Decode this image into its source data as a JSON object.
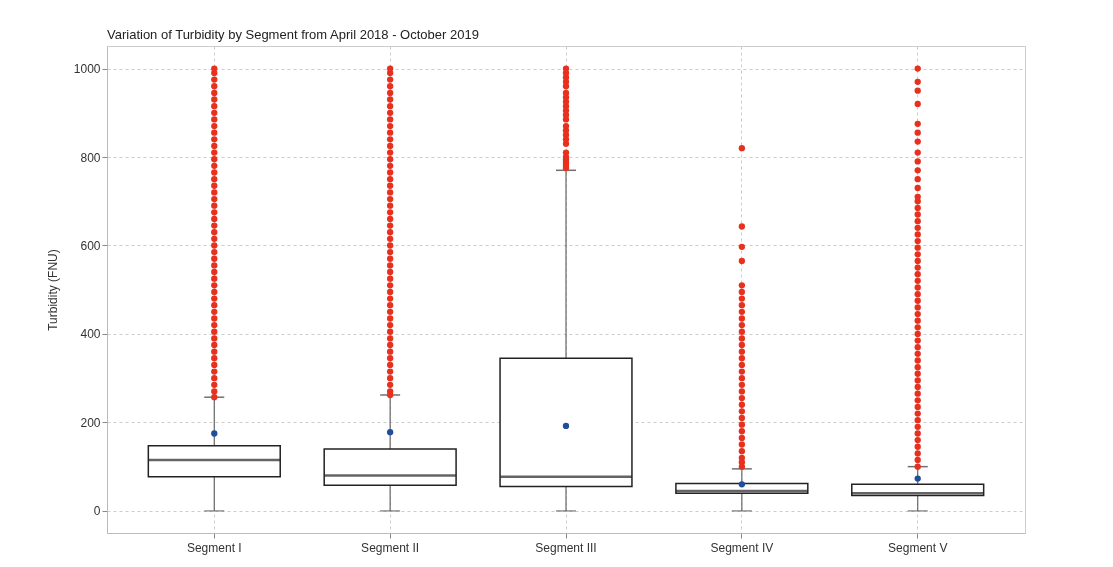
{
  "chart_data": {
    "type": "box",
    "title": "Variation of Turbidity by Segment from April 2018 - October 2019",
    "ylabel": "Turbidity (FNU)",
    "categories": [
      "Segment I",
      "Segment II",
      "Segment III",
      "Segment IV",
      "Segment V"
    ],
    "ylim": [
      -50,
      1051
    ],
    "yticks": [
      0,
      200,
      400,
      600,
      800,
      1000
    ],
    "grid": true,
    "boxes": [
      {
        "low": 0,
        "q1": 77,
        "median": 115,
        "q3": 147,
        "high": 257,
        "mean": 175,
        "outliers": [
          257,
          270,
          285,
          300,
          315,
          330,
          345,
          360,
          375,
          390,
          405,
          420,
          435,
          450,
          465,
          480,
          495,
          510,
          525,
          540,
          555,
          570,
          585,
          600,
          615,
          630,
          645,
          660,
          675,
          690,
          705,
          720,
          735,
          750,
          765,
          780,
          795,
          810,
          825,
          840,
          855,
          870,
          885,
          900,
          915,
          930,
          945,
          960,
          975,
          990,
          1000
        ]
      },
      {
        "low": 0,
        "q1": 58,
        "median": 80,
        "q3": 140,
        "high": 262,
        "mean": 178,
        "outliers": [
          262,
          270,
          285,
          300,
          315,
          330,
          345,
          360,
          375,
          390,
          405,
          420,
          435,
          450,
          465,
          480,
          495,
          510,
          525,
          540,
          555,
          570,
          585,
          600,
          615,
          630,
          645,
          660,
          675,
          690,
          705,
          720,
          735,
          750,
          765,
          780,
          795,
          810,
          825,
          840,
          855,
          870,
          885,
          900,
          915,
          930,
          945,
          960,
          975,
          990,
          1000
        ]
      },
      {
        "low": 0,
        "q1": 55,
        "median": 77,
        "q3": 345,
        "high": 770,
        "mean": 192,
        "outliers": [
          775,
          780,
          785,
          790,
          795,
          800,
          810,
          830,
          840,
          850,
          860,
          870,
          885,
          895,
          905,
          915,
          925,
          935,
          945,
          960,
          970,
          980,
          990,
          1000
        ]
      },
      {
        "low": 0,
        "q1": 40,
        "median": 45,
        "q3": 62,
        "high": 95,
        "mean": 60,
        "outliers": [
          100,
          110,
          120,
          135,
          150,
          165,
          180,
          195,
          210,
          225,
          240,
          255,
          270,
          285,
          300,
          315,
          330,
          345,
          360,
          375,
          390,
          405,
          420,
          435,
          450,
          465,
          480,
          495,
          510,
          565,
          597,
          643,
          820
        ]
      },
      {
        "low": 0,
        "q1": 35,
        "median": 40,
        "q3": 60,
        "high": 100,
        "mean": 73,
        "outliers": [
          100,
          115,
          130,
          145,
          160,
          175,
          190,
          205,
          220,
          235,
          250,
          265,
          280,
          295,
          310,
          325,
          340,
          355,
          370,
          385,
          400,
          415,
          430,
          445,
          460,
          475,
          490,
          505,
          520,
          535,
          550,
          565,
          580,
          595,
          610,
          625,
          640,
          655,
          670,
          685,
          700,
          710,
          730,
          750,
          770,
          790,
          810,
          835,
          855,
          875,
          920,
          950,
          970,
          1000
        ]
      }
    ]
  }
}
